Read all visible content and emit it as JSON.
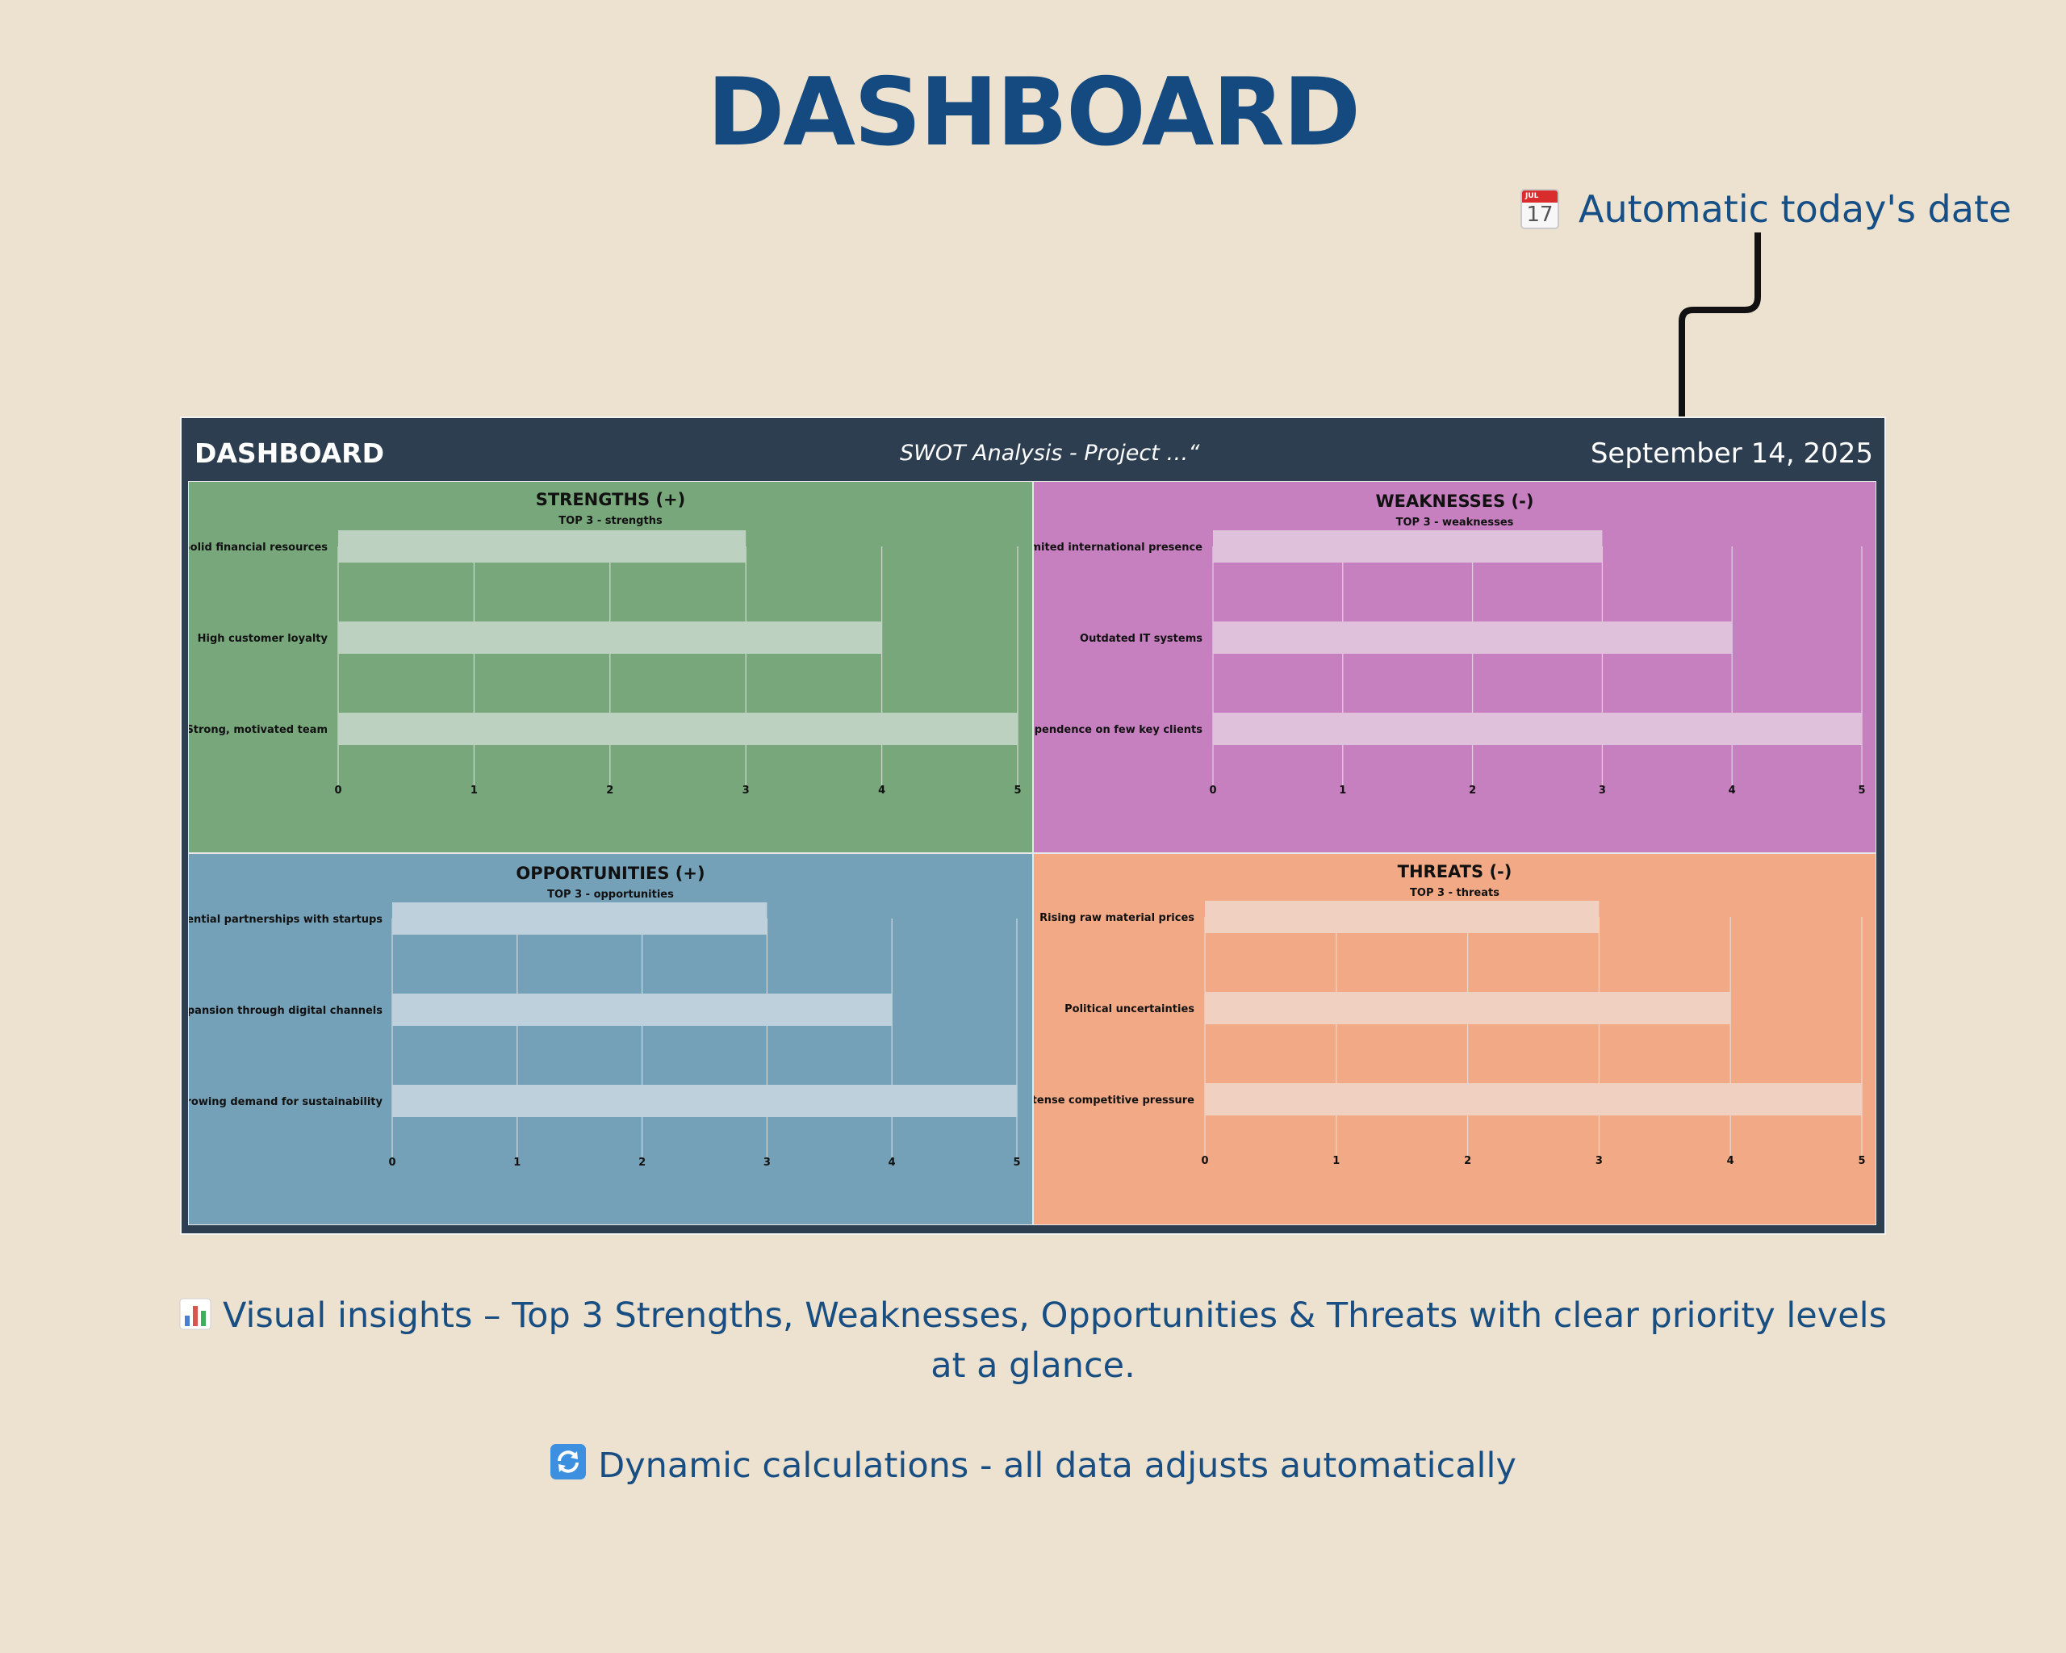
{
  "page": {
    "title": "DASHBOARD",
    "callout_text": "Automatic today's date",
    "callout_icon": "calendar-icon",
    "calendar_icon_month": "JUL",
    "calendar_icon_day": "17",
    "insight_line1": "Visual insights – Top 3 Strengths, Weaknesses, Opportunities & Threats with clear priority levels",
    "insight_line2": "at a glance.",
    "insight_icon": "bar-chart-icon",
    "dynamic_text": "Dynamic calculations - all data adjusts automatically",
    "dynamic_icon": "refresh-icon"
  },
  "dashboard": {
    "title": "DASHBOARD",
    "subtitle": "SWOT Analysis - Project …“",
    "date": "September 14, 2025",
    "header_color": "#2d3e50"
  },
  "chart_data": [
    {
      "type": "bar",
      "orientation": "horizontal",
      "title": "STRENGTHS (+)",
      "subtitle": "TOP 3 - strengths",
      "categories": [
        "Solid financial resources",
        "High customer loyalty",
        "Strong, motivated team"
      ],
      "values": [
        3,
        4,
        5
      ],
      "xlim": [
        0,
        5
      ],
      "ticks": [
        0,
        1,
        2,
        3,
        4,
        5
      ],
      "grid": true,
      "background": "#78a77c",
      "bar_color": "#bdd1c0"
    },
    {
      "type": "bar",
      "orientation": "horizontal",
      "title": "WEAKNESSES (-)",
      "subtitle": "TOP 3 - weaknesses",
      "categories": [
        "Limited international presence",
        "Outdated IT systems",
        "Dependence on few key clients"
      ],
      "values": [
        3,
        4,
        5
      ],
      "xlim": [
        0,
        5
      ],
      "ticks": [
        0,
        1,
        2,
        3,
        4,
        5
      ],
      "grid": true,
      "background": "#c67fbf",
      "bar_color": "#dfc1dc"
    },
    {
      "type": "bar",
      "orientation": "horizontal",
      "title": "OPPORTUNITIES (+)",
      "subtitle": "TOP 3 - opportunities",
      "categories": [
        "Potential partnerships with startups",
        "Expansion through digital channels",
        "Growing demand for sustainability"
      ],
      "values": [
        3,
        4,
        5
      ],
      "xlim": [
        0,
        5
      ],
      "ticks": [
        0,
        1,
        2,
        3,
        4,
        5
      ],
      "grid": true,
      "background": "#74a1b8",
      "bar_color": "#bdd0db"
    },
    {
      "type": "bar",
      "orientation": "horizontal",
      "title": "THREATS (-)",
      "subtitle": "TOP 3 - threats",
      "categories": [
        "Rising raw material prices",
        "Political uncertainties",
        "Intense competitive pressure"
      ],
      "values": [
        3,
        4,
        5
      ],
      "xlim": [
        0,
        5
      ],
      "ticks": [
        0,
        1,
        2,
        3,
        4,
        5
      ],
      "grid": true,
      "background": "#f2a985",
      "bar_color": "#f0d0c0"
    }
  ]
}
